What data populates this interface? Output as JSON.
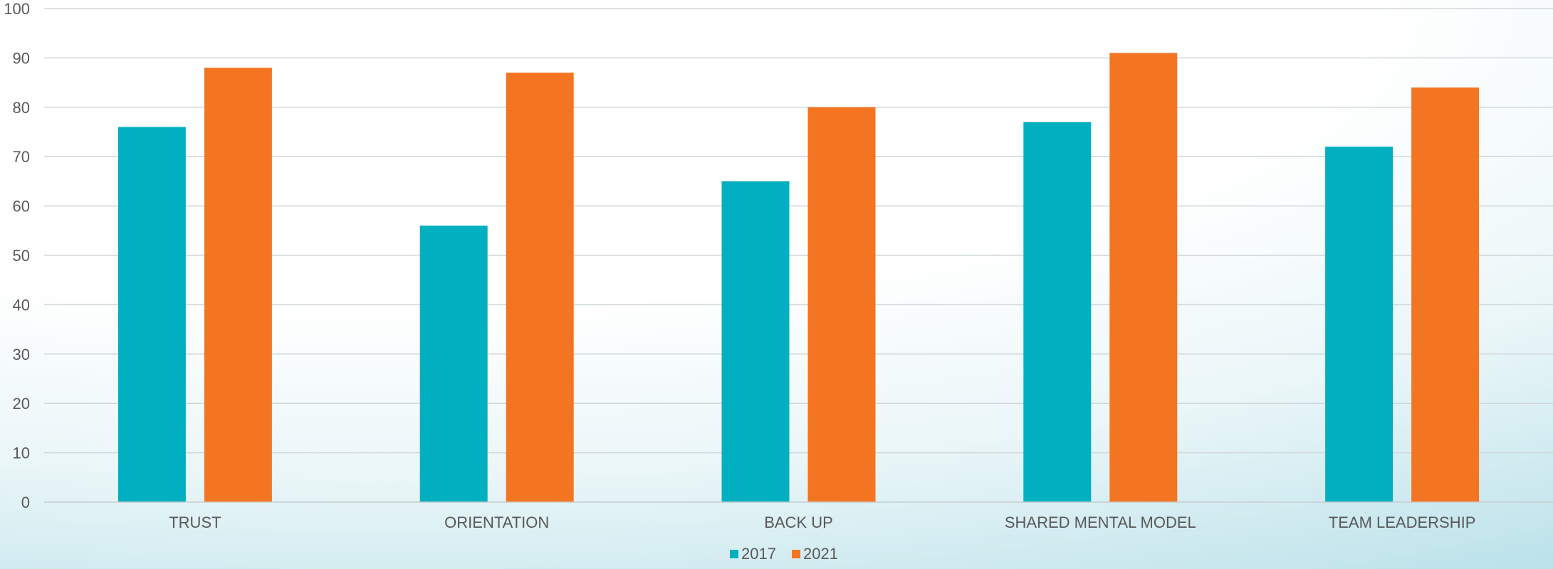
{
  "chart_data": {
    "type": "bar",
    "title": "",
    "xlabel": "",
    "ylabel": "",
    "ylim": [
      0,
      100
    ],
    "yticks": [
      0,
      10,
      20,
      30,
      40,
      50,
      60,
      70,
      80,
      90,
      100
    ],
    "grid": true,
    "legend_position": "bottom",
    "categories": [
      "TRUST",
      "ORIENTATION",
      "BACK UP",
      "SHARED MENTAL MODEL",
      "TEAM LEADERSHIP"
    ],
    "series": [
      {
        "name": "2017",
        "color": "#00B0C0",
        "values": [
          76,
          56,
          65,
          77,
          72
        ]
      },
      {
        "name": "2021",
        "color": "#F47521",
        "values": [
          88,
          87,
          80,
          91,
          84
        ]
      }
    ]
  }
}
